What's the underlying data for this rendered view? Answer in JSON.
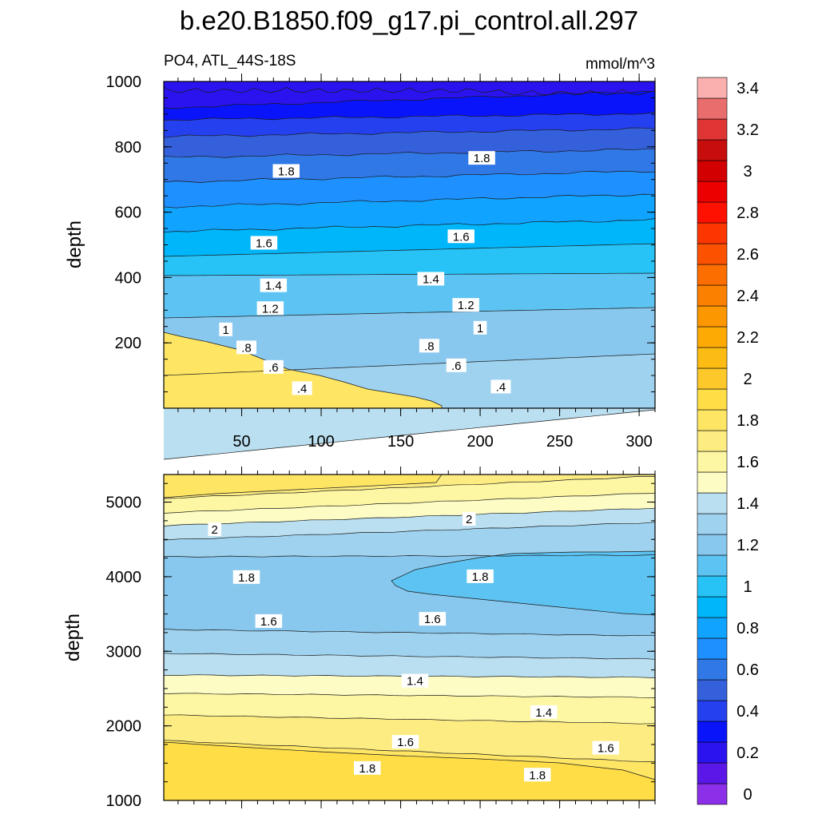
{
  "chart_data": {
    "type": "contour",
    "title": "b.e20.B1850.f09_g17.pi_control.all.297",
    "left_subtitle": "PO4, ATL_44S-18S",
    "right_subtitle": "mmol/m^3",
    "panels": [
      {
        "ylabel": "depth",
        "ylim": [
          1000,
          0
        ],
        "xlim": [
          1,
          310
        ],
        "yticks": [
          200,
          400,
          600,
          800,
          1000
        ],
        "xticks": [
          50,
          100,
          150,
          200,
          250,
          300
        ],
        "contour_labels": [
          {
            "text": ".4",
            "x": 88,
            "y": 60
          },
          {
            "text": ".4",
            "x": 213,
            "y": 65
          },
          {
            "text": ".6",
            "x": 70,
            "y": 125
          },
          {
            "text": ".6",
            "x": 185,
            "y": 130
          },
          {
            "text": ".8",
            "x": 53,
            "y": 185
          },
          {
            "text": ".8",
            "x": 168,
            "y": 190
          },
          {
            "text": "1",
            "x": 40,
            "y": 240
          },
          {
            "text": "1",
            "x": 200,
            "y": 245
          },
          {
            "text": "1.2",
            "x": 68,
            "y": 305
          },
          {
            "text": "1.2",
            "x": 191,
            "y": 315
          },
          {
            "text": "1.4",
            "x": 70,
            "y": 375
          },
          {
            "text": "1.4",
            "x": 169,
            "y": 395
          },
          {
            "text": "1.6",
            "x": 64,
            "y": 505
          },
          {
            "text": "1.6",
            "x": 188,
            "y": 525
          },
          {
            "text": "1.8",
            "x": 78,
            "y": 725
          },
          {
            "text": "1.8",
            "x": 201,
            "y": 765
          }
        ]
      },
      {
        "ylabel": "depth",
        "ylim": [
          5370,
          1000
        ],
        "xlim": [
          1,
          310
        ],
        "yticks": [
          1000,
          2000,
          3000,
          4000,
          5000
        ],
        "contour_labels": [
          {
            "text": "1.8",
            "x": 129,
            "y": 1430
          },
          {
            "text": "1.8",
            "x": 236,
            "y": 1340
          },
          {
            "text": "1.6",
            "x": 153,
            "y": 1780
          },
          {
            "text": "1.6",
            "x": 279,
            "y": 1700
          },
          {
            "text": "1.4",
            "x": 240,
            "y": 2180
          },
          {
            "text": "1.4",
            "x": 159,
            "y": 2600
          },
          {
            "text": "1.6",
            "x": 67,
            "y": 3400
          },
          {
            "text": "1.6",
            "x": 170,
            "y": 3430
          },
          {
            "text": "1.8",
            "x": 53,
            "y": 3990
          },
          {
            "text": "1.8",
            "x": 200,
            "y": 4000
          },
          {
            "text": "2",
            "x": 33,
            "y": 4630
          },
          {
            "text": "2",
            "x": 193,
            "y": 4770
          }
        ]
      }
    ],
    "colorbar": {
      "labels": [
        "0",
        "0.2",
        "0.4",
        "0.6",
        "0.8",
        "1",
        "1.2",
        "1.4",
        "1.6",
        "1.8",
        "2",
        "2.2",
        "2.4",
        "2.6",
        "2.8",
        "3",
        "3.2",
        "3.4"
      ],
      "colors": [
        "#8c2fe8",
        "#5a17e8",
        "#2b13f0",
        "#0a14fa",
        "#2540ef",
        "#3560dc",
        "#2f78e6",
        "#1f90ff",
        "#10a3ff",
        "#00b6fa",
        "#27c3f7",
        "#5cc3f2",
        "#89c8ee",
        "#9fd2ef",
        "#badff0",
        "#fdfcc4",
        "#fdf6a2",
        "#fdec81",
        "#fee564",
        "#fedd46",
        "#fdc82a",
        "#fdbc13",
        "#fdaa05",
        "#fd9700",
        "#fc8000",
        "#fd6e00",
        "#fc5200",
        "#fc3600",
        "#fe1100",
        "#ed0000",
        "#d20000",
        "#c80d0d",
        "#df3535",
        "#ea6d6d",
        "#fbb0b0"
      ]
    }
  }
}
